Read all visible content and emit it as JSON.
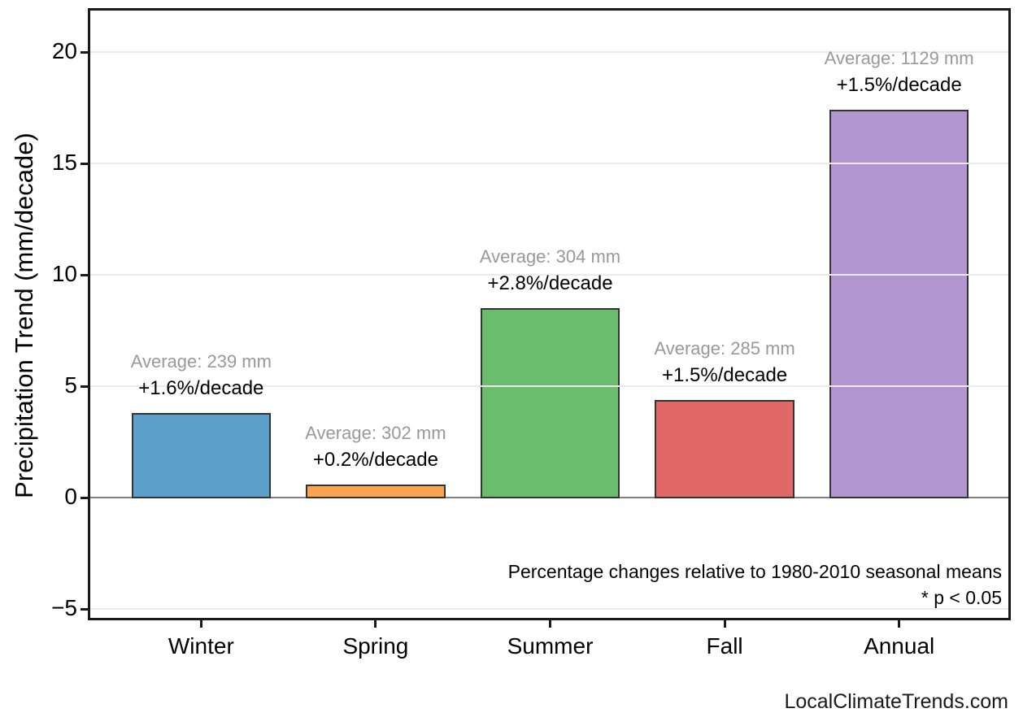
{
  "watermark": "LocalClimateTrends.com",
  "chart_data": {
    "type": "bar",
    "title": "",
    "xlabel": "",
    "ylabel": "Precipitation Trend (mm/decade)",
    "categories": [
      "Winter",
      "Spring",
      "Summer",
      "Fall",
      "Annual"
    ],
    "values": [
      3.8,
      0.6,
      8.5,
      4.4,
      17.4
    ],
    "bar_colors": [
      "#5C9FCB",
      "#FCA452",
      "#6ABD6C",
      "#E26868",
      "#B296D2"
    ],
    "bar_edge_color": "#333333",
    "annotations": [
      {
        "average": "Average: 239 mm",
        "trend": "+1.6%/decade"
      },
      {
        "average": "Average: 302 mm",
        "trend": "+0.2%/decade"
      },
      {
        "average": "Average: 304 mm",
        "trend": "+2.8%/decade"
      },
      {
        "average": "Average: 285 mm",
        "trend": "+1.5%/decade"
      },
      {
        "average": "Average: 1129 mm",
        "trend": "+1.5%/decade"
      }
    ],
    "yticks": [
      -5,
      0,
      5,
      10,
      15,
      20
    ],
    "ytick_labels": [
      "−5",
      "0",
      "5",
      "10",
      "15",
      "20"
    ],
    "ylim": [
      -5.5,
      21.9
    ],
    "grid": "horizontal-light",
    "grid_color": "#EBEBEB",
    "zero_line_color": "#808080",
    "annotation_avg_color": "#999999",
    "legend_position": "none",
    "footnotes": [
      "Percentage changes relative to 1980-2010 seasonal means",
      "* p < 0.05"
    ]
  }
}
